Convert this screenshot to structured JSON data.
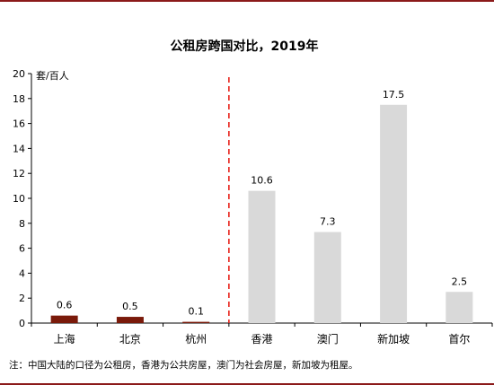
{
  "chart_data": {
    "type": "bar",
    "title": "公租房跨国对比，2019年",
    "ylabel": "套/百人",
    "xlabel": "",
    "ylim": [
      0,
      20
    ],
    "yticks": [
      0,
      2,
      4,
      6,
      8,
      10,
      12,
      14,
      16,
      18,
      20
    ],
    "categories": [
      "上海",
      "北京",
      "杭州",
      "香港",
      "澳门",
      "新加坡",
      "首尔"
    ],
    "values": [
      0.6,
      0.5,
      0.1,
      10.6,
      7.3,
      17.5,
      2.5
    ],
    "data_labels": [
      "0.6",
      "0.5",
      "0.1",
      "10.6",
      "7.3",
      "17.5",
      "2.5"
    ],
    "grid": false,
    "legend": "none",
    "divider_after_index": 2,
    "colors": {
      "domestic": "#7a1a0a",
      "international": "#d9d9d9",
      "divider": "#e8231b",
      "frame": "#8b1a1a"
    }
  },
  "note": "注：中国大陆的口径为公租房，香港为公共房屋，澳门为社会房屋，新加坡为租屋。"
}
